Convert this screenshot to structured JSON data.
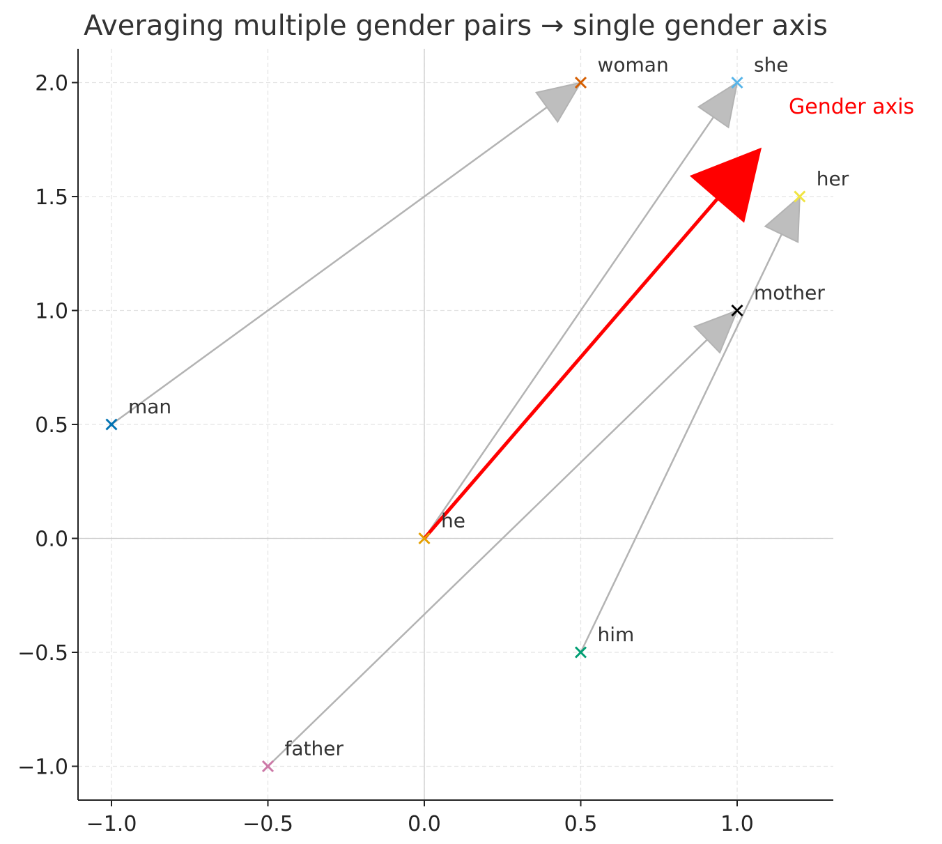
{
  "chart_data": {
    "type": "scatter",
    "title": "Averaging multiple gender pairs → single gender axis",
    "xlabel": "",
    "ylabel": "",
    "xlim": [
      -1.1,
      1.31
    ],
    "ylim": [
      -1.15,
      2.15
    ],
    "xticks": [
      -1.0,
      -0.5,
      0.0,
      0.5,
      1.0
    ],
    "yticks": [
      -1.0,
      -0.5,
      0.0,
      0.5,
      1.0,
      1.5,
      2.0
    ],
    "xtick_labels": [
      "−1.0",
      "−0.5",
      "0.0",
      "0.5",
      "1.0"
    ],
    "ytick_labels": [
      "−1.0",
      "−0.5",
      "0.0",
      "0.5",
      "1.0",
      "1.5",
      "2.0"
    ],
    "grid": true,
    "points": [
      {
        "label": "man",
        "x": -1.0,
        "y": 0.5,
        "color": "#0072b2"
      },
      {
        "label": "woman",
        "x": 0.5,
        "y": 2.0,
        "color": "#d55e00"
      },
      {
        "label": "he",
        "x": 0.0,
        "y": 0.0,
        "color": "#e69f00"
      },
      {
        "label": "she",
        "x": 1.0,
        "y": 2.0,
        "color": "#56b4e9"
      },
      {
        "label": "him",
        "x": 0.5,
        "y": -0.5,
        "color": "#009e73"
      },
      {
        "label": "her",
        "x": 1.2,
        "y": 1.5,
        "color": "#f0e442"
      },
      {
        "label": "father",
        "x": -0.5,
        "y": -1.0,
        "color": "#cc79a7"
      },
      {
        "label": "mother",
        "x": 1.0,
        "y": 1.0,
        "color": "#000000"
      }
    ],
    "pair_arrows": [
      {
        "from": "man",
        "to": "woman"
      },
      {
        "from": "he",
        "to": "she"
      },
      {
        "from": "him",
        "to": "her"
      },
      {
        "from": "father",
        "to": "mother"
      }
    ],
    "pair_arrow_color": "#b3b3b3",
    "axis_arrow": {
      "label": "Gender axis",
      "from": [
        0.0,
        0.0
      ],
      "to": [
        1.075,
        1.71
      ],
      "color": "#ff0000"
    }
  }
}
